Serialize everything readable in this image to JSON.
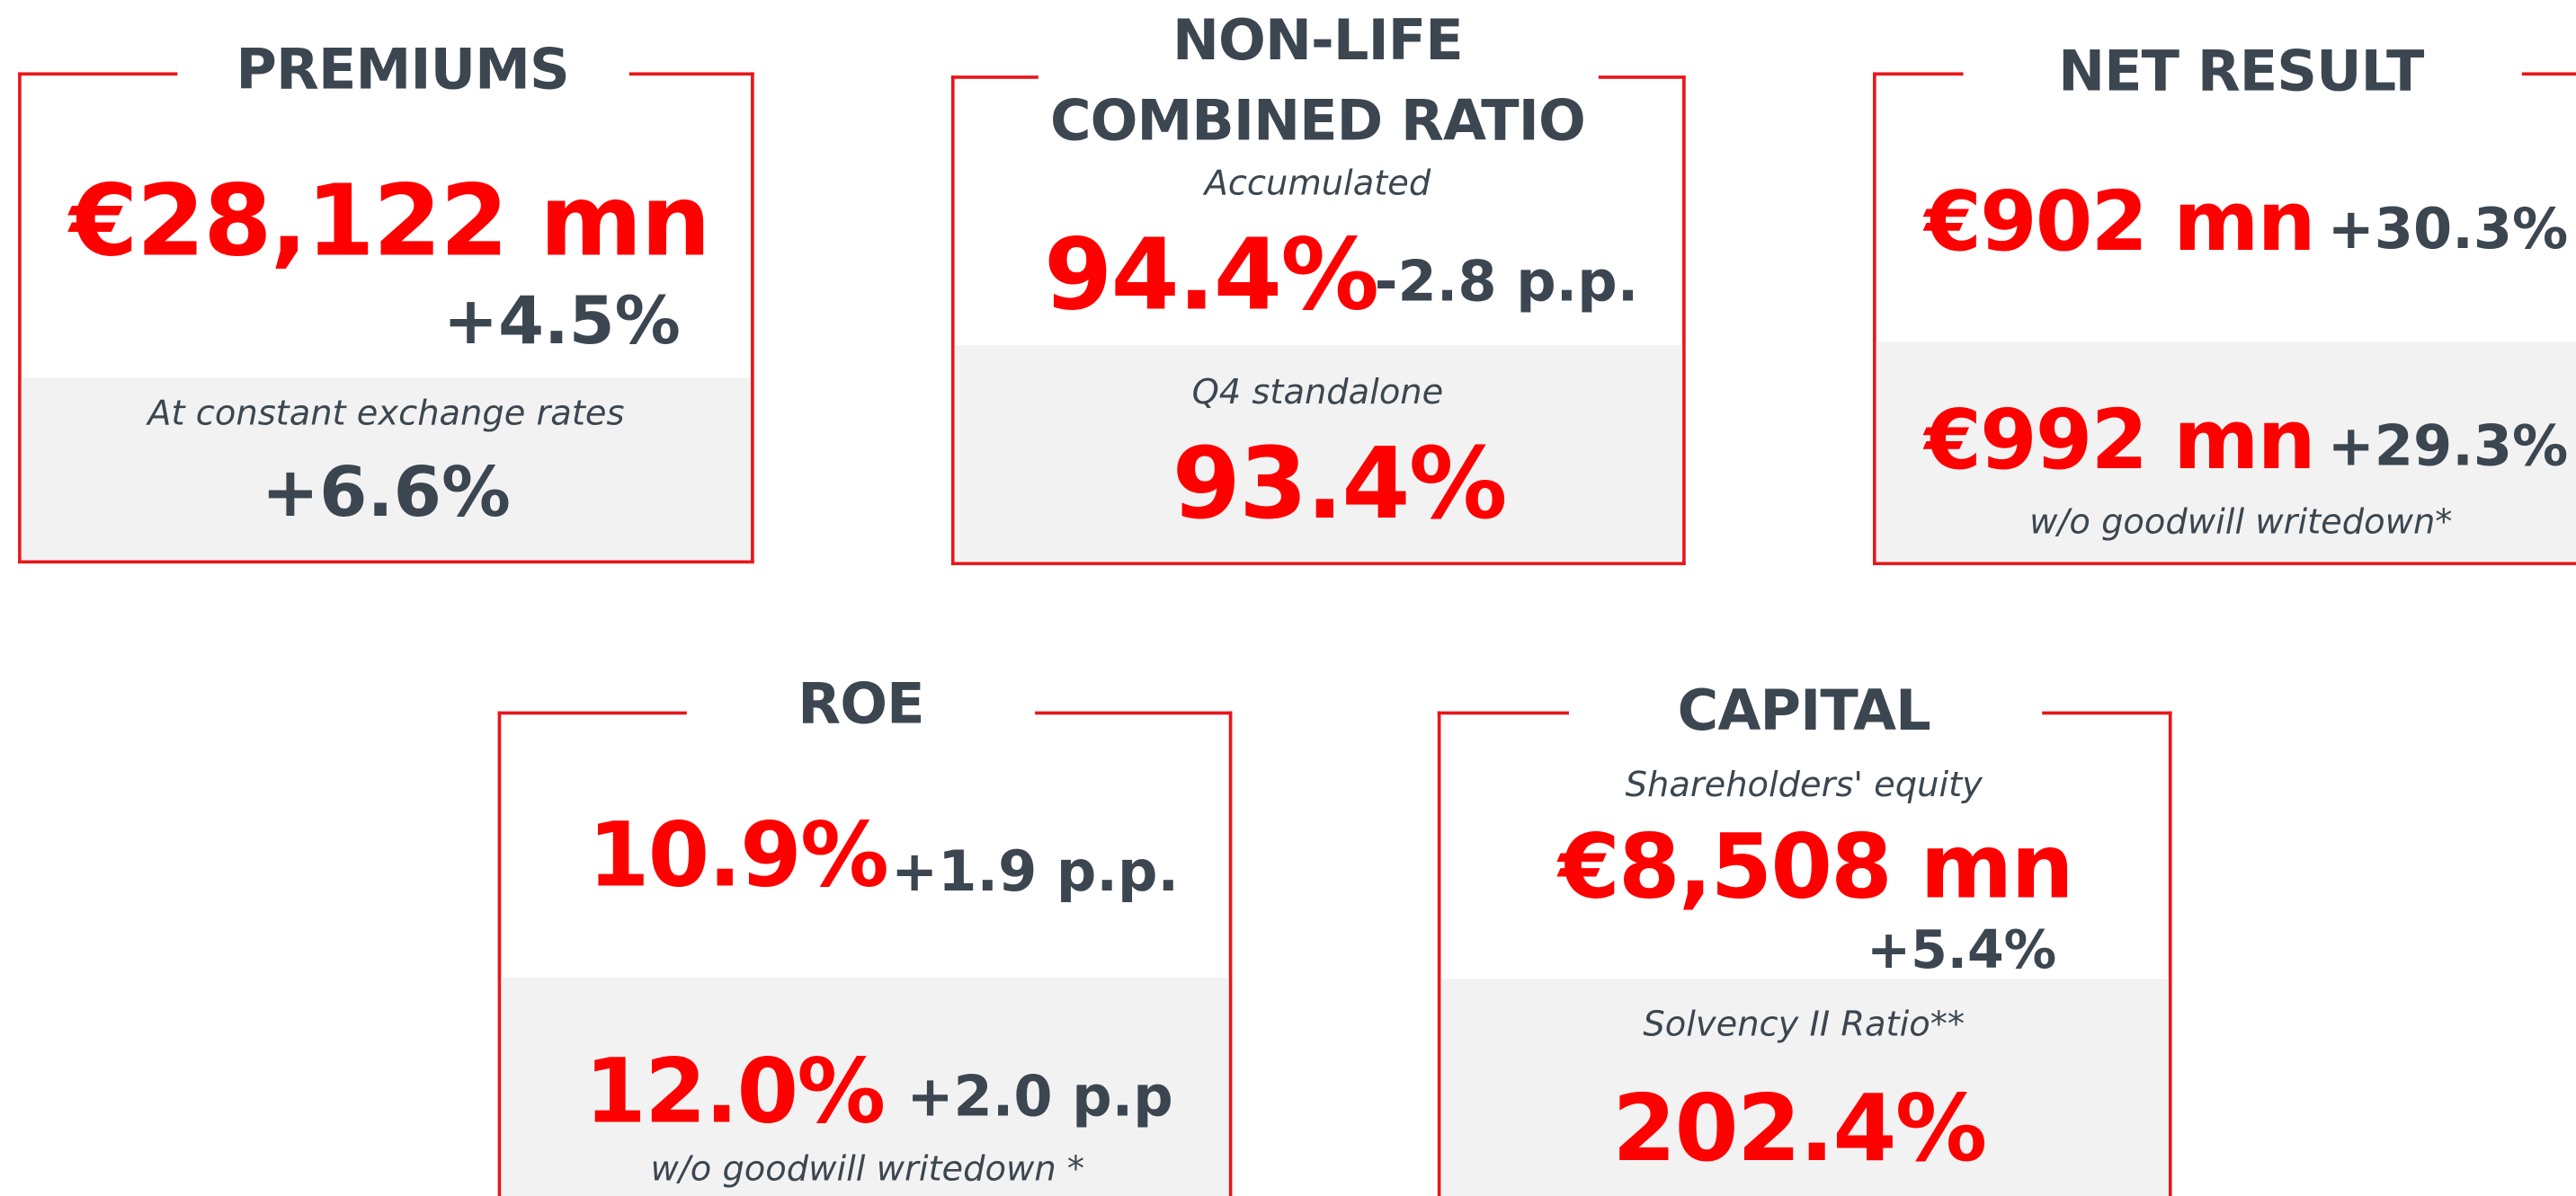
{
  "cards": [
    {
      "title": "PREMIUMS",
      "main": "€28,122 mn",
      "change": "+4.5%",
      "note": "At constant exchange rates",
      "secondary": "+6.6%"
    },
    {
      "title": [
        "NON-LIFE",
        "COMBINED RATIO"
      ],
      "note": "Accumulated",
      "main": "94.4%",
      "change": "-2.8 p.p.",
      "note2": "Q4 standalone",
      "secondary": "93.4%"
    },
    {
      "title": "NET RESULT",
      "main": "€902 mn",
      "change": "+30.3%",
      "secondary": "€992 mn",
      "change2": "+29.3%",
      "note": "w/o goodwill writedown*"
    },
    {
      "title": "ROE",
      "main": "10.9%",
      "change": "+1.9 p.p.",
      "secondary": "12.0%",
      "change2": "+2.0 p.p",
      "note": "w/o goodwill writedown *"
    },
    {
      "title": "CAPITAL",
      "note": "Shareholders' equity",
      "main": "€8,508 mn",
      "change": "+5.4%",
      "note2": "Solvency II Ratio**",
      "secondary": "202.4%"
    }
  ]
}
